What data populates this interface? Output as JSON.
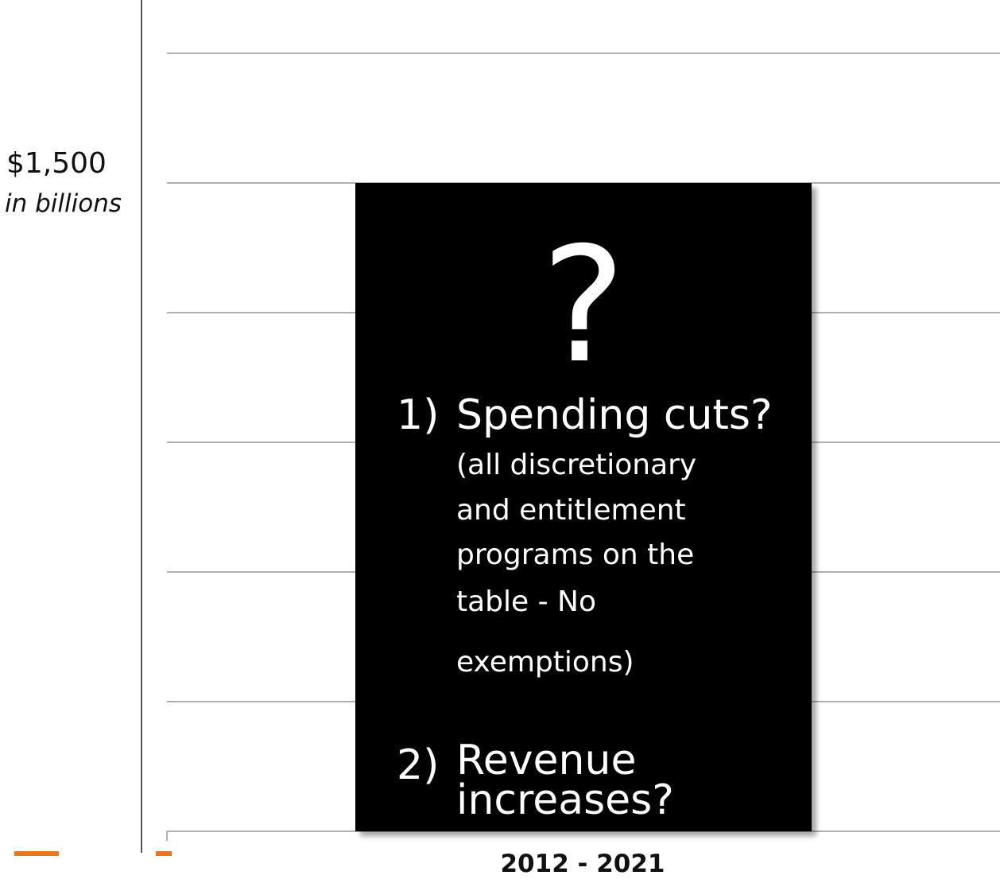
{
  "chart_data": {
    "type": "bar",
    "title": "",
    "xlabel": "",
    "ylabel": "",
    "categories": [
      "2012 - 2021"
    ],
    "values": [
      1500
    ],
    "yticks": [
      "$1,500"
    ],
    "yunit": "in billions",
    "ylim": [
      0,
      2000
    ],
    "grid": true,
    "colors": {
      "bar": "#000000",
      "grid": "#b0b0b0",
      "axis": "#555555",
      "accent": "#e87722"
    },
    "annotation": {
      "symbol": "?",
      "items": [
        {
          "number": "1)",
          "heading": "Spending cuts?",
          "details": [
            "(all discretionary",
            "and entitlement",
            "programs on the",
            "table - No",
            "exemptions)"
          ]
        },
        {
          "number": "2)",
          "heading_lines": [
            "Revenue",
            "increases?"
          ]
        }
      ]
    }
  }
}
